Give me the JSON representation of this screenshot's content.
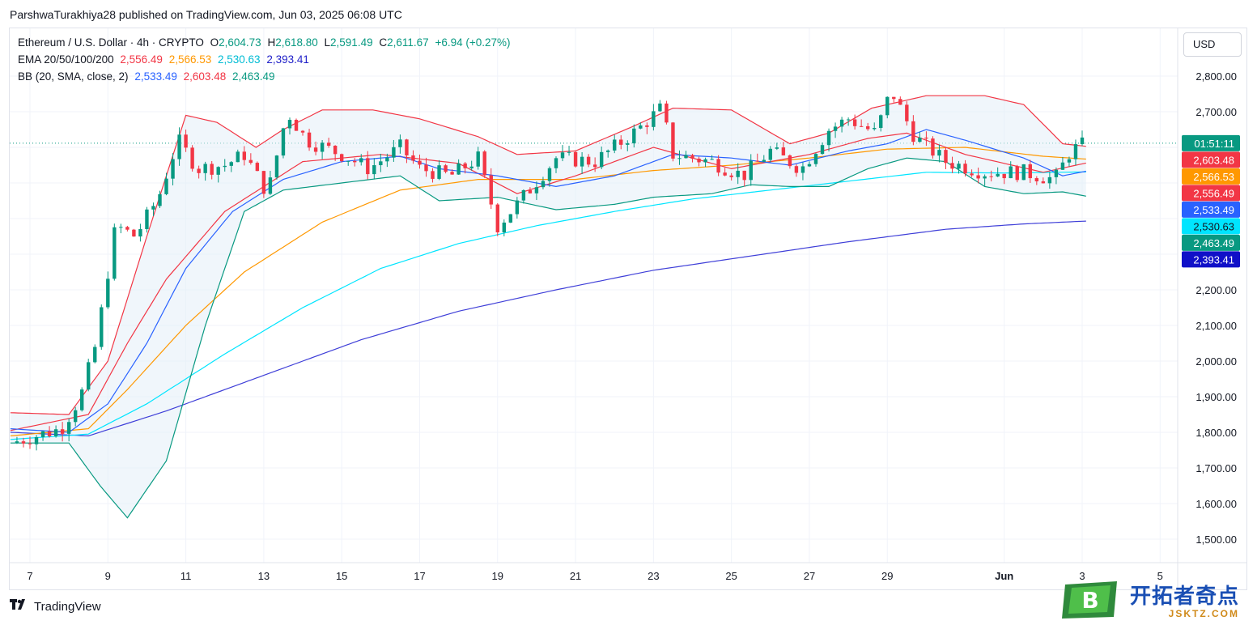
{
  "header": {
    "published_line": "ParshwaTurakhiya28 published on TradingView.com, Jun 03, 2025 06:08 UTC"
  },
  "currency_button": "USD",
  "legend": {
    "symbol": "Ethereum / U.S. Dollar · 4h · CRYPTO",
    "o_label": "O",
    "o_value": "2,604.73",
    "h_label": "H",
    "h_value": "2,618.80",
    "l_label": "L",
    "l_value": "2,591.49",
    "c_label": "C",
    "c_value": "2,611.67",
    "change": "+6.94 (+0.27%)",
    "ema_label": "EMA 20/50/100/200",
    "ema20": "2,556.49",
    "ema50": "2,566.53",
    "ema100": "2,530.63",
    "ema200": "2,393.41",
    "bb_label": "BB (20, SMA, close, 2)",
    "bb_basis": "2,533.49",
    "bb_upper": "2,603.48",
    "bb_lower": "2,463.49"
  },
  "footer": {
    "brand": "TradingView"
  },
  "watermark": {
    "cn": "开拓者奇点",
    "en": "JSKTZ.COM",
    "logo_letter": "B"
  },
  "colors": {
    "up": "#089981",
    "down": "#f23645",
    "ema20": "#f23645",
    "ema50": "#ff9800",
    "ema100": "#00e5ff",
    "ema200": "#3f3fd8",
    "bb_basis": "#2962ff",
    "bb_upper": "#f23645",
    "bb_lower": "#089981",
    "bb_fill": "#e3eef8",
    "countdown": "#089981"
  },
  "chart_data": {
    "type": "candlestick",
    "timeframe": "4h",
    "ylim": [
      1450,
      2850
    ],
    "y_ticks": [
      1500,
      1600,
      1700,
      1800,
      1900,
      2000,
      2100,
      2200,
      2300,
      2400,
      2500,
      2600,
      2700,
      2800
    ],
    "y_tick_labels_shown": [
      "1,500.00",
      "1,600.00",
      "1,700.00",
      "1,800.00",
      "1,900.00",
      "2,000.00",
      "2,100.00",
      "2,200.00",
      "2,700.00",
      "2,800.00"
    ],
    "x_ticks": [
      {
        "label": "7",
        "day": 7
      },
      {
        "label": "9",
        "day": 9
      },
      {
        "label": "11",
        "day": 11
      },
      {
        "label": "13",
        "day": 13
      },
      {
        "label": "15",
        "day": 15
      },
      {
        "label": "17",
        "day": 17
      },
      {
        "label": "19",
        "day": 19
      },
      {
        "label": "21",
        "day": 21
      },
      {
        "label": "23",
        "day": 23
      },
      {
        "label": "25",
        "day": 25
      },
      {
        "label": "27",
        "day": 27
      },
      {
        "label": "29",
        "day": 29
      },
      {
        "label": "Jun",
        "day": 32
      },
      {
        "label": "3",
        "day": 34
      },
      {
        "label": "5",
        "day": 36
      }
    ],
    "x_range_days": [
      6.5,
      36.5
    ],
    "countdown": "01:51:11",
    "price_line_value": 2611.67,
    "right_scale_badges": [
      {
        "name": "BB upper",
        "value": 2603.48,
        "label": "2,603.48"
      },
      {
        "name": "EMA 50",
        "value": 2566.53,
        "label": "2,566.53"
      },
      {
        "name": "EMA 20",
        "value": 2556.49,
        "label": "2,556.49"
      },
      {
        "name": "BB basis",
        "value": 2533.49,
        "label": "2,533.49"
      },
      {
        "name": "EMA 100",
        "value": 2530.63,
        "label": "2,530.63"
      },
      {
        "name": "BB lower",
        "value": 2463.49,
        "label": "2,463.49"
      },
      {
        "name": "EMA 200",
        "value": 2393.41,
        "label": "2,393.41"
      }
    ],
    "price_key_points": [
      [
        6.5,
        1770
      ],
      [
        7.8,
        1810
      ],
      [
        8.3,
        1900
      ],
      [
        8.7,
        2050
      ],
      [
        9.0,
        2250
      ],
      [
        9.2,
        2380
      ],
      [
        9.7,
        2350
      ],
      [
        10.3,
        2460
      ],
      [
        10.8,
        2620
      ],
      [
        11.3,
        2540
      ],
      [
        12.0,
        2550
      ],
      [
        12.5,
        2580
      ],
      [
        13.1,
        2470
      ],
      [
        13.6,
        2700
      ],
      [
        14.1,
        2620
      ],
      [
        15.0,
        2580
      ],
      [
        15.7,
        2540
      ],
      [
        16.5,
        2600
      ],
      [
        17.0,
        2540
      ],
      [
        17.8,
        2520
      ],
      [
        18.5,
        2570
      ],
      [
        19.0,
        2380
      ],
      [
        19.5,
        2440
      ],
      [
        20.5,
        2570
      ],
      [
        21.5,
        2560
      ],
      [
        22.6,
        2650
      ],
      [
        23.2,
        2710
      ],
      [
        23.5,
        2580
      ],
      [
        24.5,
        2560
      ],
      [
        25.3,
        2520
      ],
      [
        26.0,
        2590
      ],
      [
        26.8,
        2540
      ],
      [
        27.5,
        2650
      ],
      [
        28.0,
        2680
      ],
      [
        28.7,
        2640
      ],
      [
        29.1,
        2760
      ],
      [
        29.7,
        2630
      ],
      [
        30.5,
        2560
      ],
      [
        31.5,
        2530
      ],
      [
        32.5,
        2530
      ],
      [
        33.3,
        2510
      ],
      [
        33.7,
        2590
      ],
      [
        34.1,
        2612
      ]
    ],
    "ema20_points": [
      [
        6.5,
        1805
      ],
      [
        8.5,
        1850
      ],
      [
        9.5,
        2050
      ],
      [
        10.5,
        2230
      ],
      [
        12.0,
        2420
      ],
      [
        14.0,
        2560
      ],
      [
        16.0,
        2580
      ],
      [
        18.0,
        2555
      ],
      [
        19.5,
        2470
      ],
      [
        21.0,
        2520
      ],
      [
        23.0,
        2600
      ],
      [
        25.0,
        2540
      ],
      [
        27.0,
        2580
      ],
      [
        28.5,
        2625
      ],
      [
        29.5,
        2640
      ],
      [
        31.0,
        2580
      ],
      [
        33.0,
        2530
      ],
      [
        34.1,
        2556
      ]
    ],
    "ema50_points": [
      [
        6.5,
        1790
      ],
      [
        8.5,
        1810
      ],
      [
        9.5,
        1920
      ],
      [
        11.0,
        2100
      ],
      [
        12.5,
        2250
      ],
      [
        14.5,
        2390
      ],
      [
        16.5,
        2480
      ],
      [
        18.5,
        2510
      ],
      [
        21.0,
        2510
      ],
      [
        23.0,
        2535
      ],
      [
        25.0,
        2550
      ],
      [
        27.0,
        2570
      ],
      [
        29.0,
        2595
      ],
      [
        31.0,
        2600
      ],
      [
        33.0,
        2575
      ],
      [
        34.1,
        2567
      ]
    ],
    "ema100_points": [
      [
        6.5,
        1780
      ],
      [
        8.5,
        1795
      ],
      [
        10.0,
        1880
      ],
      [
        12.0,
        2020
      ],
      [
        14.0,
        2150
      ],
      [
        16.0,
        2260
      ],
      [
        18.0,
        2330
      ],
      [
        20.0,
        2380
      ],
      [
        22.0,
        2420
      ],
      [
        24.0,
        2455
      ],
      [
        26.0,
        2480
      ],
      [
        28.0,
        2505
      ],
      [
        30.0,
        2530
      ],
      [
        32.0,
        2528
      ],
      [
        34.1,
        2531
      ]
    ],
    "ema200_points": [
      [
        6.5,
        1800
      ],
      [
        8.5,
        1790
      ],
      [
        10.5,
        1860
      ],
      [
        13.0,
        1960
      ],
      [
        15.5,
        2060
      ],
      [
        18.0,
        2140
      ],
      [
        20.5,
        2200
      ],
      [
        23.0,
        2255
      ],
      [
        25.5,
        2295
      ],
      [
        28.0,
        2335
      ],
      [
        30.5,
        2370
      ],
      [
        32.5,
        2385
      ],
      [
        34.1,
        2393
      ]
    ],
    "bb_basis_points": [
      [
        6.5,
        1810
      ],
      [
        8.0,
        1800
      ],
      [
        9.0,
        1880
      ],
      [
        10.0,
        2050
      ],
      [
        11.0,
        2260
      ],
      [
        12.2,
        2420
      ],
      [
        13.5,
        2510
      ],
      [
        15.0,
        2560
      ],
      [
        16.5,
        2575
      ],
      [
        17.5,
        2540
      ],
      [
        19.0,
        2520
      ],
      [
        20.5,
        2490
      ],
      [
        22.0,
        2520
      ],
      [
        23.5,
        2580
      ],
      [
        25.0,
        2570
      ],
      [
        26.5,
        2550
      ],
      [
        28.0,
        2590
      ],
      [
        29.0,
        2610
      ],
      [
        30.0,
        2650
      ],
      [
        31.0,
        2620
      ],
      [
        32.5,
        2570
      ],
      [
        33.5,
        2520
      ],
      [
        34.1,
        2533
      ]
    ],
    "bb_upper_points": [
      [
        6.5,
        1855
      ],
      [
        8.0,
        1850
      ],
      [
        9.0,
        2000
      ],
      [
        10.0,
        2350
      ],
      [
        11.0,
        2690
      ],
      [
        11.8,
        2670
      ],
      [
        12.8,
        2600
      ],
      [
        13.5,
        2650
      ],
      [
        14.5,
        2705
      ],
      [
        15.8,
        2705
      ],
      [
        17.0,
        2680
      ],
      [
        18.5,
        2630
      ],
      [
        19.5,
        2580
      ],
      [
        21.0,
        2590
      ],
      [
        22.5,
        2660
      ],
      [
        23.5,
        2710
      ],
      [
        25.0,
        2705
      ],
      [
        26.5,
        2610
      ],
      [
        27.5,
        2640
      ],
      [
        28.6,
        2710
      ],
      [
        30.0,
        2745
      ],
      [
        31.5,
        2745
      ],
      [
        32.5,
        2720
      ],
      [
        33.5,
        2610
      ],
      [
        34.1,
        2603
      ]
    ],
    "bb_lower_points": [
      [
        6.5,
        1770
      ],
      [
        8.0,
        1770
      ],
      [
        8.8,
        1650
      ],
      [
        9.5,
        1560
      ],
      [
        10.5,
        1720
      ],
      [
        11.5,
        2100
      ],
      [
        12.5,
        2420
      ],
      [
        13.5,
        2480
      ],
      [
        15.0,
        2500
      ],
      [
        16.5,
        2520
      ],
      [
        17.5,
        2450
      ],
      [
        19.0,
        2460
      ],
      [
        20.5,
        2425
      ],
      [
        22.0,
        2440
      ],
      [
        23.0,
        2460
      ],
      [
        24.5,
        2470
      ],
      [
        25.5,
        2495
      ],
      [
        26.5,
        2490
      ],
      [
        27.5,
        2490
      ],
      [
        28.5,
        2540
      ],
      [
        29.5,
        2570
      ],
      [
        30.5,
        2560
      ],
      [
        31.5,
        2490
      ],
      [
        32.5,
        2470
      ],
      [
        33.5,
        2475
      ],
      [
        34.1,
        2463
      ]
    ]
  }
}
